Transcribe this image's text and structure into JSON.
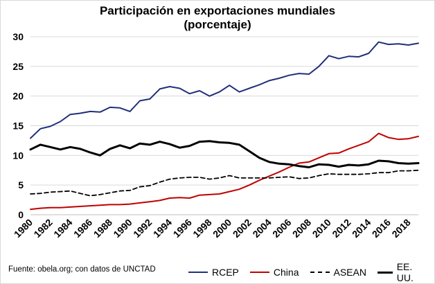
{
  "chart_data": {
    "type": "line",
    "title_line1": "Participación en exportaciones mundiales",
    "title_line2": "(porcentaje)",
    "xlim": [
      1980,
      2019
    ],
    "ylim": [
      0,
      30
    ],
    "yticks": [
      0,
      5,
      10,
      15,
      20,
      25,
      30
    ],
    "xticks": [
      "1980",
      "1982",
      "1984",
      "1986",
      "1988",
      "1990",
      "1992",
      "1994",
      "1996",
      "1998",
      "2000",
      "2002",
      "2004",
      "2006",
      "2008",
      "2010",
      "2012",
      "2014",
      "2016",
      "2018"
    ],
    "x": [
      1980,
      1981,
      1982,
      1983,
      1984,
      1985,
      1986,
      1987,
      1988,
      1989,
      1990,
      1991,
      1992,
      1993,
      1994,
      1995,
      1996,
      1997,
      1998,
      1999,
      2000,
      2001,
      2002,
      2003,
      2004,
      2005,
      2006,
      2007,
      2008,
      2009,
      2010,
      2011,
      2012,
      2013,
      2014,
      2015,
      2016,
      2017,
      2018,
      2019
    ],
    "series": [
      {
        "name": "RCEP",
        "color": "#1f2f7a",
        "dash": "solid",
        "values": [
          12.9,
          14.5,
          14.9,
          15.7,
          16.9,
          17.1,
          17.4,
          17.3,
          18.1,
          18.0,
          17.4,
          19.2,
          19.5,
          21.2,
          21.6,
          21.3,
          20.4,
          20.9,
          20.0,
          20.7,
          21.8,
          20.7,
          21.3,
          21.9,
          22.6,
          23.0,
          23.5,
          23.8,
          23.7,
          25.0,
          26.8,
          26.3,
          26.7,
          26.6,
          27.2,
          29.1,
          28.7,
          28.8,
          28.6,
          28.9
        ]
      },
      {
        "name": "China",
        "color": "#c00000",
        "dash": "solid",
        "values": [
          0.9,
          1.1,
          1.2,
          1.2,
          1.3,
          1.4,
          1.5,
          1.6,
          1.7,
          1.7,
          1.8,
          2.0,
          2.2,
          2.4,
          2.8,
          2.9,
          2.8,
          3.3,
          3.4,
          3.5,
          3.9,
          4.3,
          5.0,
          5.8,
          6.5,
          7.2,
          8.0,
          8.7,
          8.9,
          9.6,
          10.3,
          10.4,
          11.1,
          11.7,
          12.3,
          13.7,
          13.0,
          12.7,
          12.8,
          13.2
        ]
      },
      {
        "name": "ASEAN",
        "color": "#000000",
        "dash": "dashed",
        "values": [
          3.5,
          3.6,
          3.8,
          3.9,
          4.0,
          3.6,
          3.2,
          3.4,
          3.7,
          4.0,
          4.1,
          4.7,
          4.9,
          5.5,
          6.0,
          6.2,
          6.3,
          6.3,
          6.0,
          6.2,
          6.6,
          6.2,
          6.2,
          6.2,
          6.2,
          6.3,
          6.4,
          6.1,
          6.2,
          6.6,
          6.9,
          6.8,
          6.8,
          6.8,
          6.9,
          7.1,
          7.1,
          7.4,
          7.4,
          7.5
        ]
      },
      {
        "name": "EE. UU.",
        "color": "#000000",
        "dash": "solid",
        "values": [
          11.0,
          11.8,
          11.4,
          11.0,
          11.4,
          11.1,
          10.5,
          10.0,
          11.1,
          11.7,
          11.2,
          12.0,
          11.8,
          12.3,
          11.9,
          11.3,
          11.6,
          12.3,
          12.4,
          12.2,
          12.1,
          11.8,
          10.7,
          9.6,
          8.9,
          8.6,
          8.5,
          8.2,
          8.0,
          8.5,
          8.4,
          8.1,
          8.4,
          8.3,
          8.5,
          9.1,
          9.0,
          8.7,
          8.6,
          8.7
        ]
      }
    ],
    "source": "Fuente: obela.org; con datos de UNCTAD"
  }
}
